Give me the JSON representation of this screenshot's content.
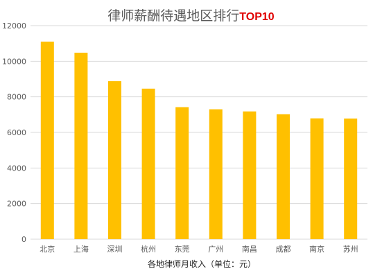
{
  "chart_data": {
    "type": "bar",
    "title_main": "律师薪酬待遇地区排行",
    "title_accent": "TOP10",
    "xlabel": "各地律师月收入（单位：元）",
    "ylabel": "",
    "categories": [
      "北京",
      "上海",
      "深圳",
      "杭州",
      "东莞",
      "广州",
      "南昌",
      "成都",
      "南京",
      "苏州"
    ],
    "values": [
      11100,
      10480,
      8880,
      8460,
      7420,
      7300,
      7180,
      7020,
      6790,
      6780
    ],
    "ylim": [
      0,
      12000
    ],
    "yticks": [
      0,
      2000,
      4000,
      6000,
      8000,
      10000,
      12000
    ],
    "grid": true,
    "legend": "none",
    "colors": {
      "bar": "#FFC000",
      "grid": "#D9D9D9",
      "axis_text": "#595959",
      "title_accent": "#E00000"
    }
  }
}
